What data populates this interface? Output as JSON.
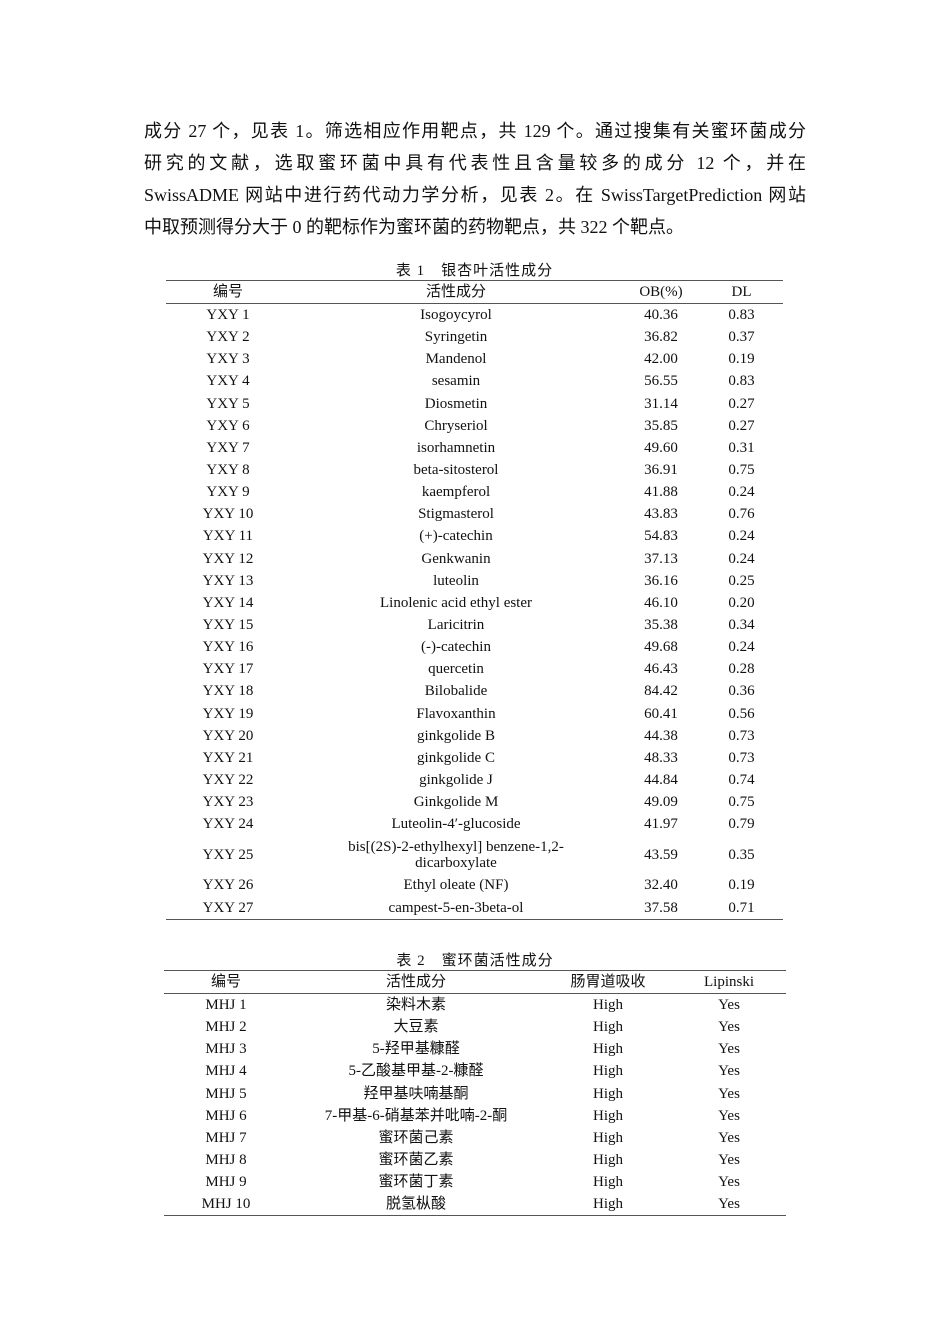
{
  "paragraph": [
    "成分 27 个，见表 1。筛选相应作用靶点，共 129 个。通过搜集有关蜜环菌成分",
    "研究的文献，选取蜜环菌中具有代表性且含量较多的成分 12 个，并在",
    "SwissADME 网站中进行药代动力学分析，见表 2。在 SwissTargetPrediction 网站",
    "中取预测得分大于 0 的靶标作为蜜环菌的药物靶点，共 322 个靶点。"
  ],
  "table1": {
    "caption": "表 1　银杏叶活性成分",
    "headers": [
      "编号",
      "活性成分",
      "OB(%)",
      "DL"
    ],
    "rows": [
      [
        "YXY 1",
        "Isogoycyrol",
        "40.36",
        "0.83"
      ],
      [
        "YXY 2",
        "Syringetin",
        "36.82",
        "0.37"
      ],
      [
        "YXY 3",
        "Mandenol",
        "42.00",
        "0.19"
      ],
      [
        "YXY 4",
        "sesamin",
        "56.55",
        "0.83"
      ],
      [
        "YXY 5",
        "Diosmetin",
        "31.14",
        "0.27"
      ],
      [
        "YXY 6",
        "Chryseriol",
        "35.85",
        "0.27"
      ],
      [
        "YXY 7",
        "isorhamnetin",
        "49.60",
        "0.31"
      ],
      [
        "YXY 8",
        "beta-sitosterol",
        "36.91",
        "0.75"
      ],
      [
        "YXY 9",
        "kaempferol",
        "41.88",
        "0.24"
      ],
      [
        "YXY 10",
        "Stigmasterol",
        "43.83",
        "0.76"
      ],
      [
        "YXY 11",
        "(+)-catechin",
        "54.83",
        "0.24"
      ],
      [
        "YXY 12",
        "Genkwanin",
        "37.13",
        "0.24"
      ],
      [
        "YXY 13",
        "luteolin",
        "36.16",
        "0.25"
      ],
      [
        "YXY 14",
        "Linolenic acid ethyl ester",
        "46.10",
        "0.20"
      ],
      [
        "YXY 15",
        "Laricitrin",
        "35.38",
        "0.34"
      ],
      [
        "YXY 16",
        "(-)-catechin",
        "49.68",
        "0.24"
      ],
      [
        "YXY 17",
        "quercetin",
        "46.43",
        "0.28"
      ],
      [
        "YXY 18",
        "Bilobalide",
        "84.42",
        "0.36"
      ],
      [
        "YXY 19",
        "Flavoxanthin",
        "60.41",
        "0.56"
      ],
      [
        "YXY 20",
        "ginkgolide B",
        "44.38",
        "0.73"
      ],
      [
        "YXY 21",
        "ginkgolide C",
        "48.33",
        "0.73"
      ],
      [
        "YXY 22",
        "ginkgolide J",
        "44.84",
        "0.74"
      ],
      [
        "YXY 23",
        "Ginkgolide M",
        "49.09",
        "0.75"
      ],
      [
        "YXY 24",
        "Luteolin-4′-glucoside",
        "41.97",
        "0.79"
      ],
      [
        "YXY 25",
        "bis[(2S)-2-ethylhexyl] benzene-1,2-dicarboxylate",
        "43.59",
        "0.35"
      ],
      [
        "YXY 26",
        "Ethyl oleate (NF)",
        "32.40",
        "0.19"
      ],
      [
        "YXY 27",
        "campest-5-en-3beta-ol",
        "37.58",
        "0.71"
      ]
    ]
  },
  "table2": {
    "caption": "表 2　蜜环菌活性成分",
    "headers": [
      "编号",
      "活性成分",
      "肠胃道吸收",
      "Lipinski"
    ],
    "rows": [
      [
        "MHJ 1",
        "染料木素",
        "High",
        "Yes"
      ],
      [
        "MHJ 2",
        "大豆素",
        "High",
        "Yes"
      ],
      [
        "MHJ 3",
        "5-羟甲基糠醛",
        "High",
        "Yes"
      ],
      [
        "MHJ 4",
        "5-乙酸基甲基-2-糠醛",
        "High",
        "Yes"
      ],
      [
        "MHJ 5",
        "羟甲基呋喃基酮",
        "High",
        "Yes"
      ],
      [
        "MHJ 6",
        "7-甲基-6-硝基苯并吡喃-2-酮",
        "High",
        "Yes"
      ],
      [
        "MHJ 7",
        "蜜环菌己素",
        "High",
        "Yes"
      ],
      [
        "MHJ 8",
        "蜜环菌乙素",
        "High",
        "Yes"
      ],
      [
        "MHJ 9",
        "蜜环菌丁素",
        "High",
        "Yes"
      ],
      [
        "MHJ 10",
        "脱氢枞酸",
        "High",
        "Yes"
      ]
    ]
  }
}
